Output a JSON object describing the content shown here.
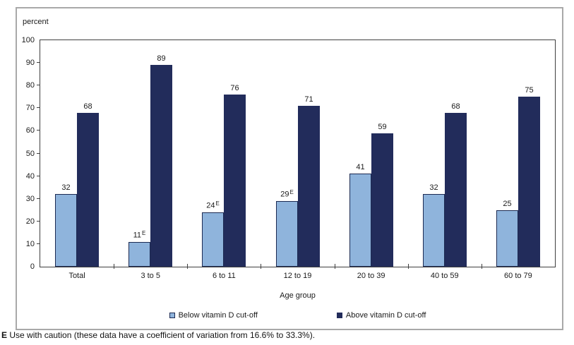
{
  "chart_data": {
    "type": "bar",
    "title": "",
    "ylabel": "percent",
    "xlabel": "Age group",
    "ylim": [
      0,
      100
    ],
    "yticks": [
      0,
      10,
      20,
      30,
      40,
      50,
      60,
      70,
      80,
      90,
      100
    ],
    "grid": false,
    "legend_position": "bottom",
    "categories": [
      "Total",
      "3 to 5",
      "6 to 11",
      "12 to 19",
      "20 to 39",
      "40 to 59",
      "60 to 79"
    ],
    "series": [
      {
        "name": "Below vitamin D cut-off",
        "color": "#8FB4DC",
        "border_color": "#1C2A52",
        "values": [
          32,
          11,
          24,
          29,
          41,
          32,
          25
        ],
        "flags": [
          "",
          "E",
          "E",
          "E",
          "",
          "",
          ""
        ]
      },
      {
        "name": "Above vitamin D cut-off",
        "color": "#222C5B",
        "border_color": "#222C5B",
        "values": [
          68,
          89,
          76,
          71,
          59,
          68,
          75
        ],
        "flags": [
          "",
          "",
          "",
          "",
          "",
          "",
          ""
        ]
      }
    ]
  },
  "footnote": {
    "prefix": "E",
    "text": "Use with caution (these data have a coefficient of variation from 16.6% to 33.3%)."
  },
  "frame": {
    "outer_border_color": "#A9A9A9",
    "plot_border_color": "#3F3F3F"
  }
}
